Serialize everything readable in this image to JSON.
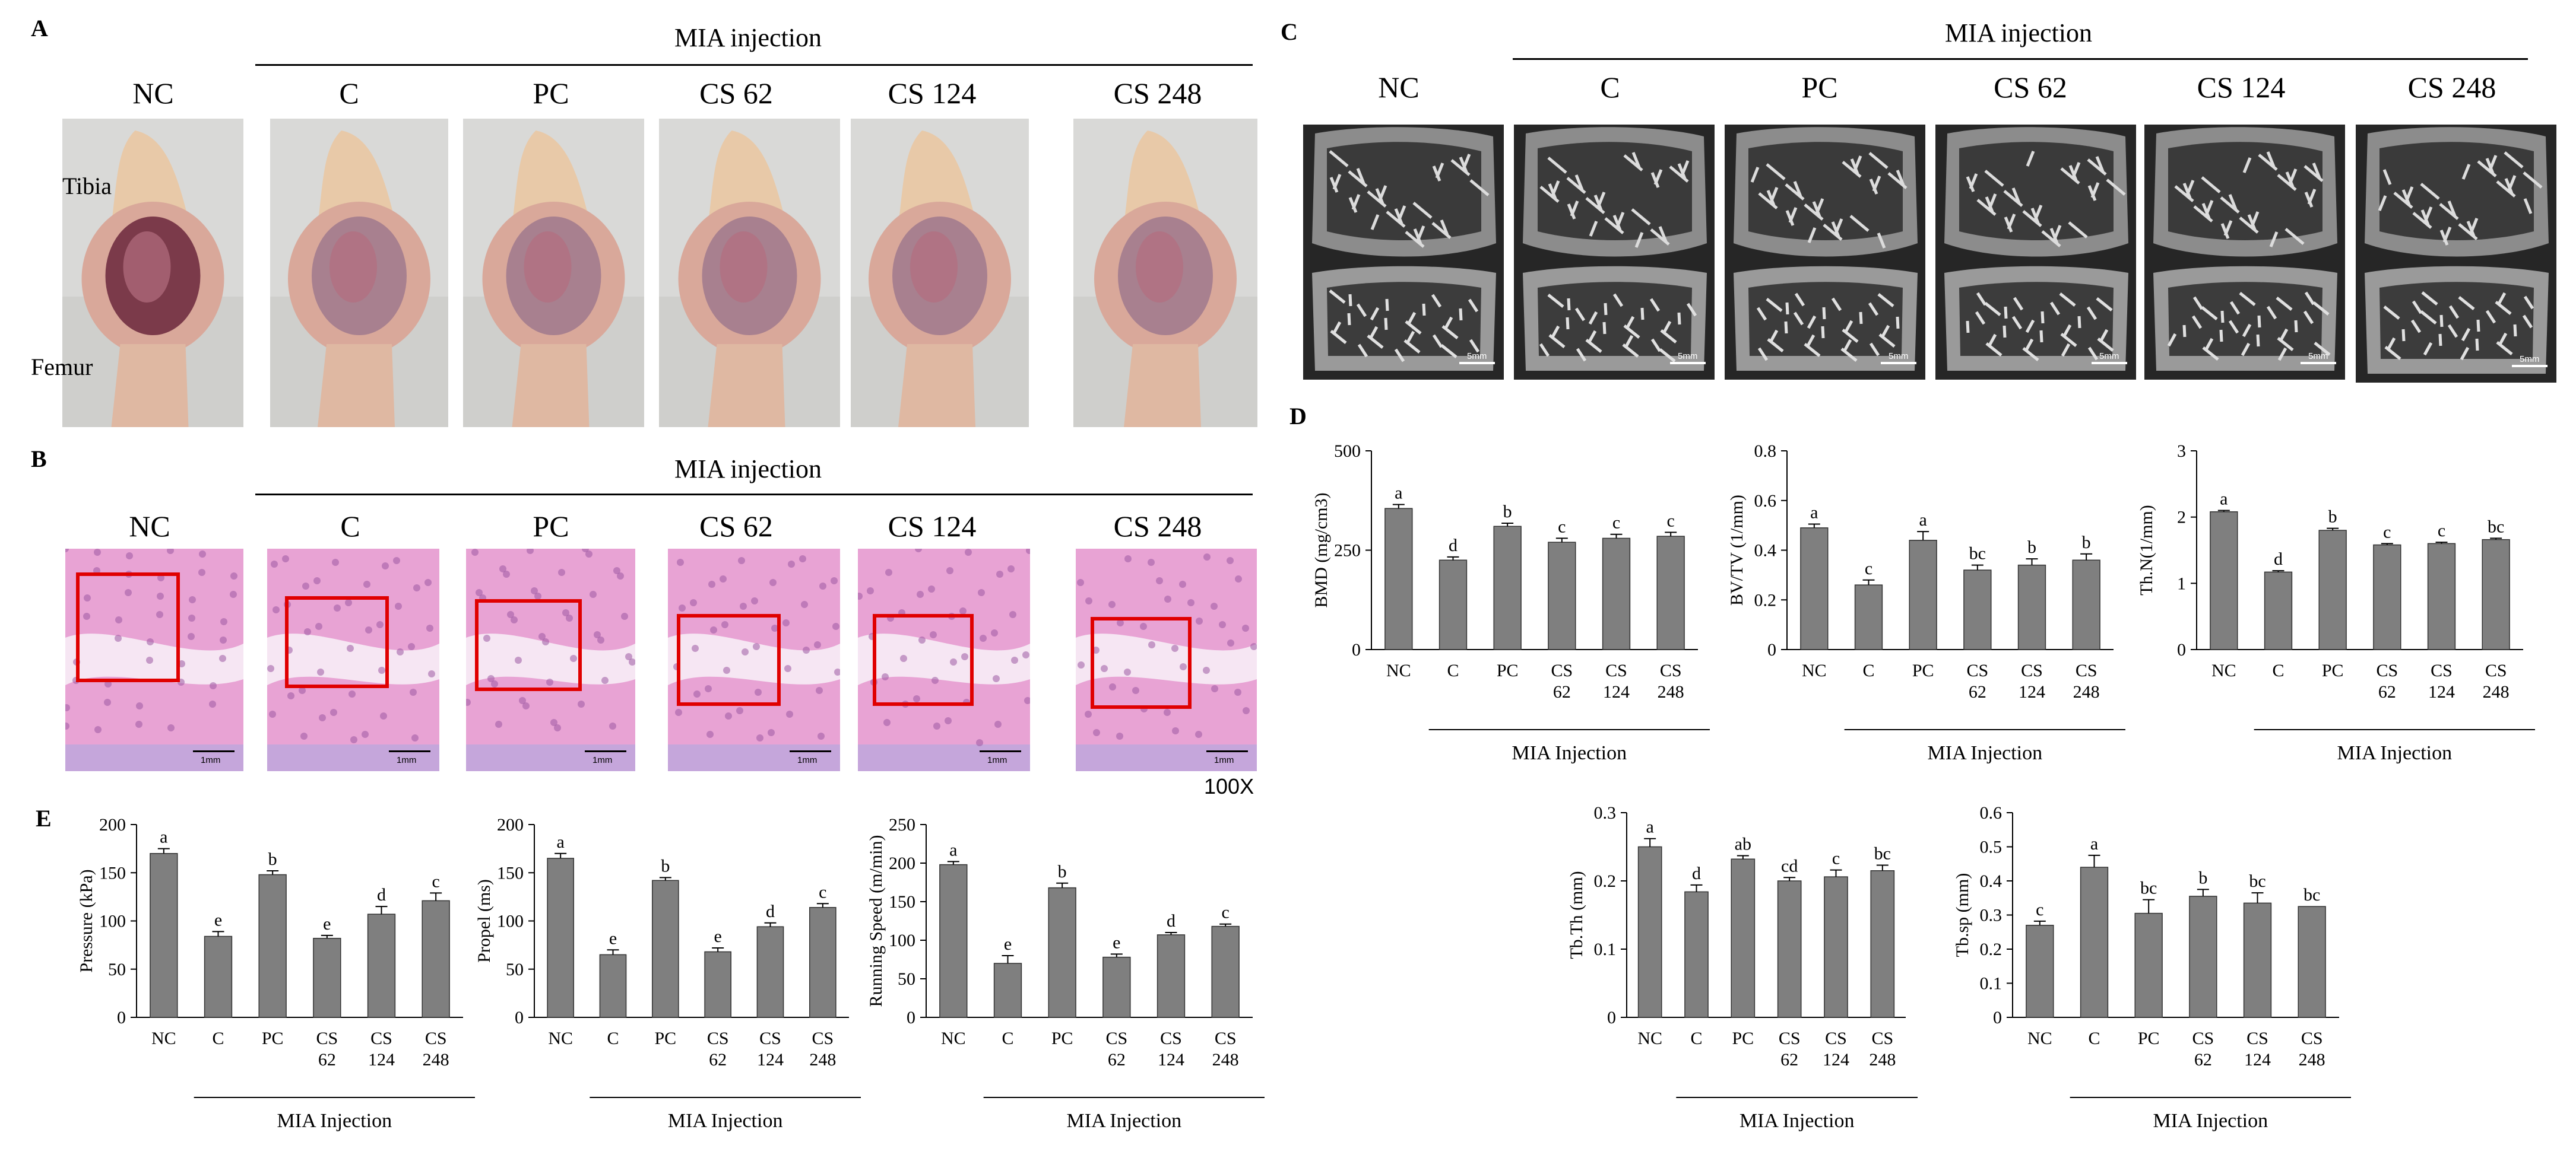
{
  "panels": {
    "A": {
      "letter": "A",
      "group_title": "MIA injection",
      "columns": [
        "NC",
        "C",
        "PC",
        "CS 62",
        "CS 124",
        "CS 248"
      ],
      "anat_top": "Tibia",
      "anat_bottom": "Femur"
    },
    "B": {
      "letter": "B",
      "group_title": "MIA injection",
      "columns": [
        "NC",
        "C",
        "PC",
        "CS 62",
        "CS 124",
        "CS 248"
      ],
      "scale_label": "1mm",
      "magnification": "100X"
    },
    "C": {
      "letter": "C",
      "group_title": "MIA injection",
      "columns": [
        "NC",
        "C",
        "PC",
        "CS 62",
        "CS 124",
        "CS 248"
      ],
      "scale_label": "5mm"
    },
    "D": {
      "letter": "D"
    },
    "E": {
      "letter": "E"
    }
  },
  "colors": {
    "bar": "#7f7f7f",
    "box": "#e00000"
  },
  "chart_data": [
    {
      "id": "bmd",
      "type": "bar",
      "ylabel": "BMD (mg/cm3)",
      "ylim": [
        0,
        500
      ],
      "yticks": [
        0,
        250,
        500
      ],
      "categories": [
        "NC",
        "C",
        "PC",
        "CS\n62",
        "CS\n124",
        "CS\n248"
      ],
      "values": [
        355,
        225,
        310,
        270,
        280,
        285
      ],
      "errors": [
        10,
        8,
        8,
        10,
        10,
        10
      ],
      "letters": [
        "a",
        "d",
        "b",
        "c",
        "c",
        "c"
      ],
      "group_label": "MIA Injection"
    },
    {
      "id": "bvtv",
      "type": "bar",
      "ylabel": "BV/TV (1/mm)",
      "ylim": [
        0,
        0.8
      ],
      "yticks": [
        0,
        0.2,
        0.4,
        0.6,
        0.8
      ],
      "categories": [
        "NC",
        "C",
        "PC",
        "CS\n62",
        "CS\n124",
        "CS\n248"
      ],
      "values": [
        0.49,
        0.26,
        0.44,
        0.32,
        0.34,
        0.36
      ],
      "errors": [
        0.015,
        0.02,
        0.035,
        0.02,
        0.025,
        0.025
      ],
      "letters": [
        "a",
        "c",
        "a",
        "bc",
        "b",
        "b"
      ],
      "group_label": "MIA Injection"
    },
    {
      "id": "thn",
      "type": "bar",
      "ylabel": "Th.N(1/mm)",
      "ylim": [
        0,
        3
      ],
      "yticks": [
        0,
        1,
        2,
        3
      ],
      "categories": [
        "NC",
        "C",
        "PC",
        "CS\n62",
        "CS\n124",
        "CS\n248"
      ],
      "values": [
        2.08,
        1.17,
        1.8,
        1.58,
        1.6,
        1.66
      ],
      "errors": [
        0.02,
        0.02,
        0.03,
        0.02,
        0.02,
        0.02
      ],
      "letters": [
        "a",
        "d",
        "b",
        "c",
        "c",
        "bc"
      ],
      "group_label": "MIA Injection"
    },
    {
      "id": "tbth",
      "type": "bar",
      "ylabel": "Tb.Th (mm)",
      "ylim": [
        0,
        0.3
      ],
      "yticks": [
        0,
        0.1,
        0.2,
        0.3
      ],
      "categories": [
        "NC",
        "C",
        "PC",
        "CS\n62",
        "CS\n124",
        "CS\n248"
      ],
      "values": [
        0.25,
        0.184,
        0.232,
        0.2,
        0.206,
        0.215
      ],
      "errors": [
        0.012,
        0.01,
        0.005,
        0.005,
        0.01,
        0.008
      ],
      "letters": [
        "a",
        "d",
        "ab",
        "cd",
        "c",
        "bc"
      ],
      "group_label": "MIA Injection"
    },
    {
      "id": "tbsp",
      "type": "bar",
      "ylabel": "Tb.sp (mm)",
      "ylim": [
        0,
        0.6
      ],
      "yticks": [
        0,
        0.1,
        0.2,
        0.3,
        0.4,
        0.5,
        0.6
      ],
      "categories": [
        "NC",
        "C",
        "PC",
        "CS\n62",
        "CS\n124",
        "CS\n248"
      ],
      "values": [
        0.27,
        0.44,
        0.305,
        0.355,
        0.335,
        0.325
      ],
      "errors": [
        0.012,
        0.035,
        0.04,
        0.02,
        0.03,
        0.0
      ],
      "letters": [
        "c",
        "a",
        "bc",
        "b",
        "bc",
        "bc"
      ],
      "group_label": "MIA Injection"
    },
    {
      "id": "pressure",
      "type": "bar",
      "ylabel": "Pressure (kPa)",
      "ylim": [
        0,
        200
      ],
      "yticks": [
        0,
        50,
        100,
        150,
        200
      ],
      "categories": [
        "NC",
        "C",
        "PC",
        "CS\n62",
        "CS\n124",
        "CS\n248"
      ],
      "values": [
        170,
        84,
        148,
        82,
        107,
        121
      ],
      "errors": [
        5,
        5,
        4,
        3,
        8,
        8
      ],
      "letters": [
        "a",
        "e",
        "b",
        "e",
        "d",
        "c"
      ],
      "group_label": "MIA Injection"
    },
    {
      "id": "propel",
      "type": "bar",
      "ylabel": "Propel (ms)",
      "ylim": [
        0,
        200
      ],
      "yticks": [
        0,
        50,
        100,
        150,
        200
      ],
      "categories": [
        "NC",
        "C",
        "PC",
        "CS\n62",
        "CS\n124",
        "CS\n248"
      ],
      "values": [
        165,
        65,
        142,
        68,
        94,
        114
      ],
      "errors": [
        5,
        5,
        3,
        4,
        4,
        4
      ],
      "letters": [
        "a",
        "e",
        "b",
        "e",
        "d",
        "c"
      ],
      "group_label": "MIA Injection"
    },
    {
      "id": "speed",
      "type": "bar",
      "ylabel": "Running Speed (m/min)",
      "ylim": [
        0,
        250
      ],
      "yticks": [
        0,
        50,
        100,
        150,
        200,
        250
      ],
      "categories": [
        "NC",
        "C",
        "PC",
        "CS\n62",
        "CS\n124",
        "CS\n248"
      ],
      "values": [
        198,
        70,
        168,
        78,
        107,
        118
      ],
      "errors": [
        4,
        10,
        6,
        4,
        3,
        3
      ],
      "letters": [
        "a",
        "e",
        "b",
        "e",
        "d",
        "c"
      ],
      "group_label": "MIA Injection"
    }
  ]
}
